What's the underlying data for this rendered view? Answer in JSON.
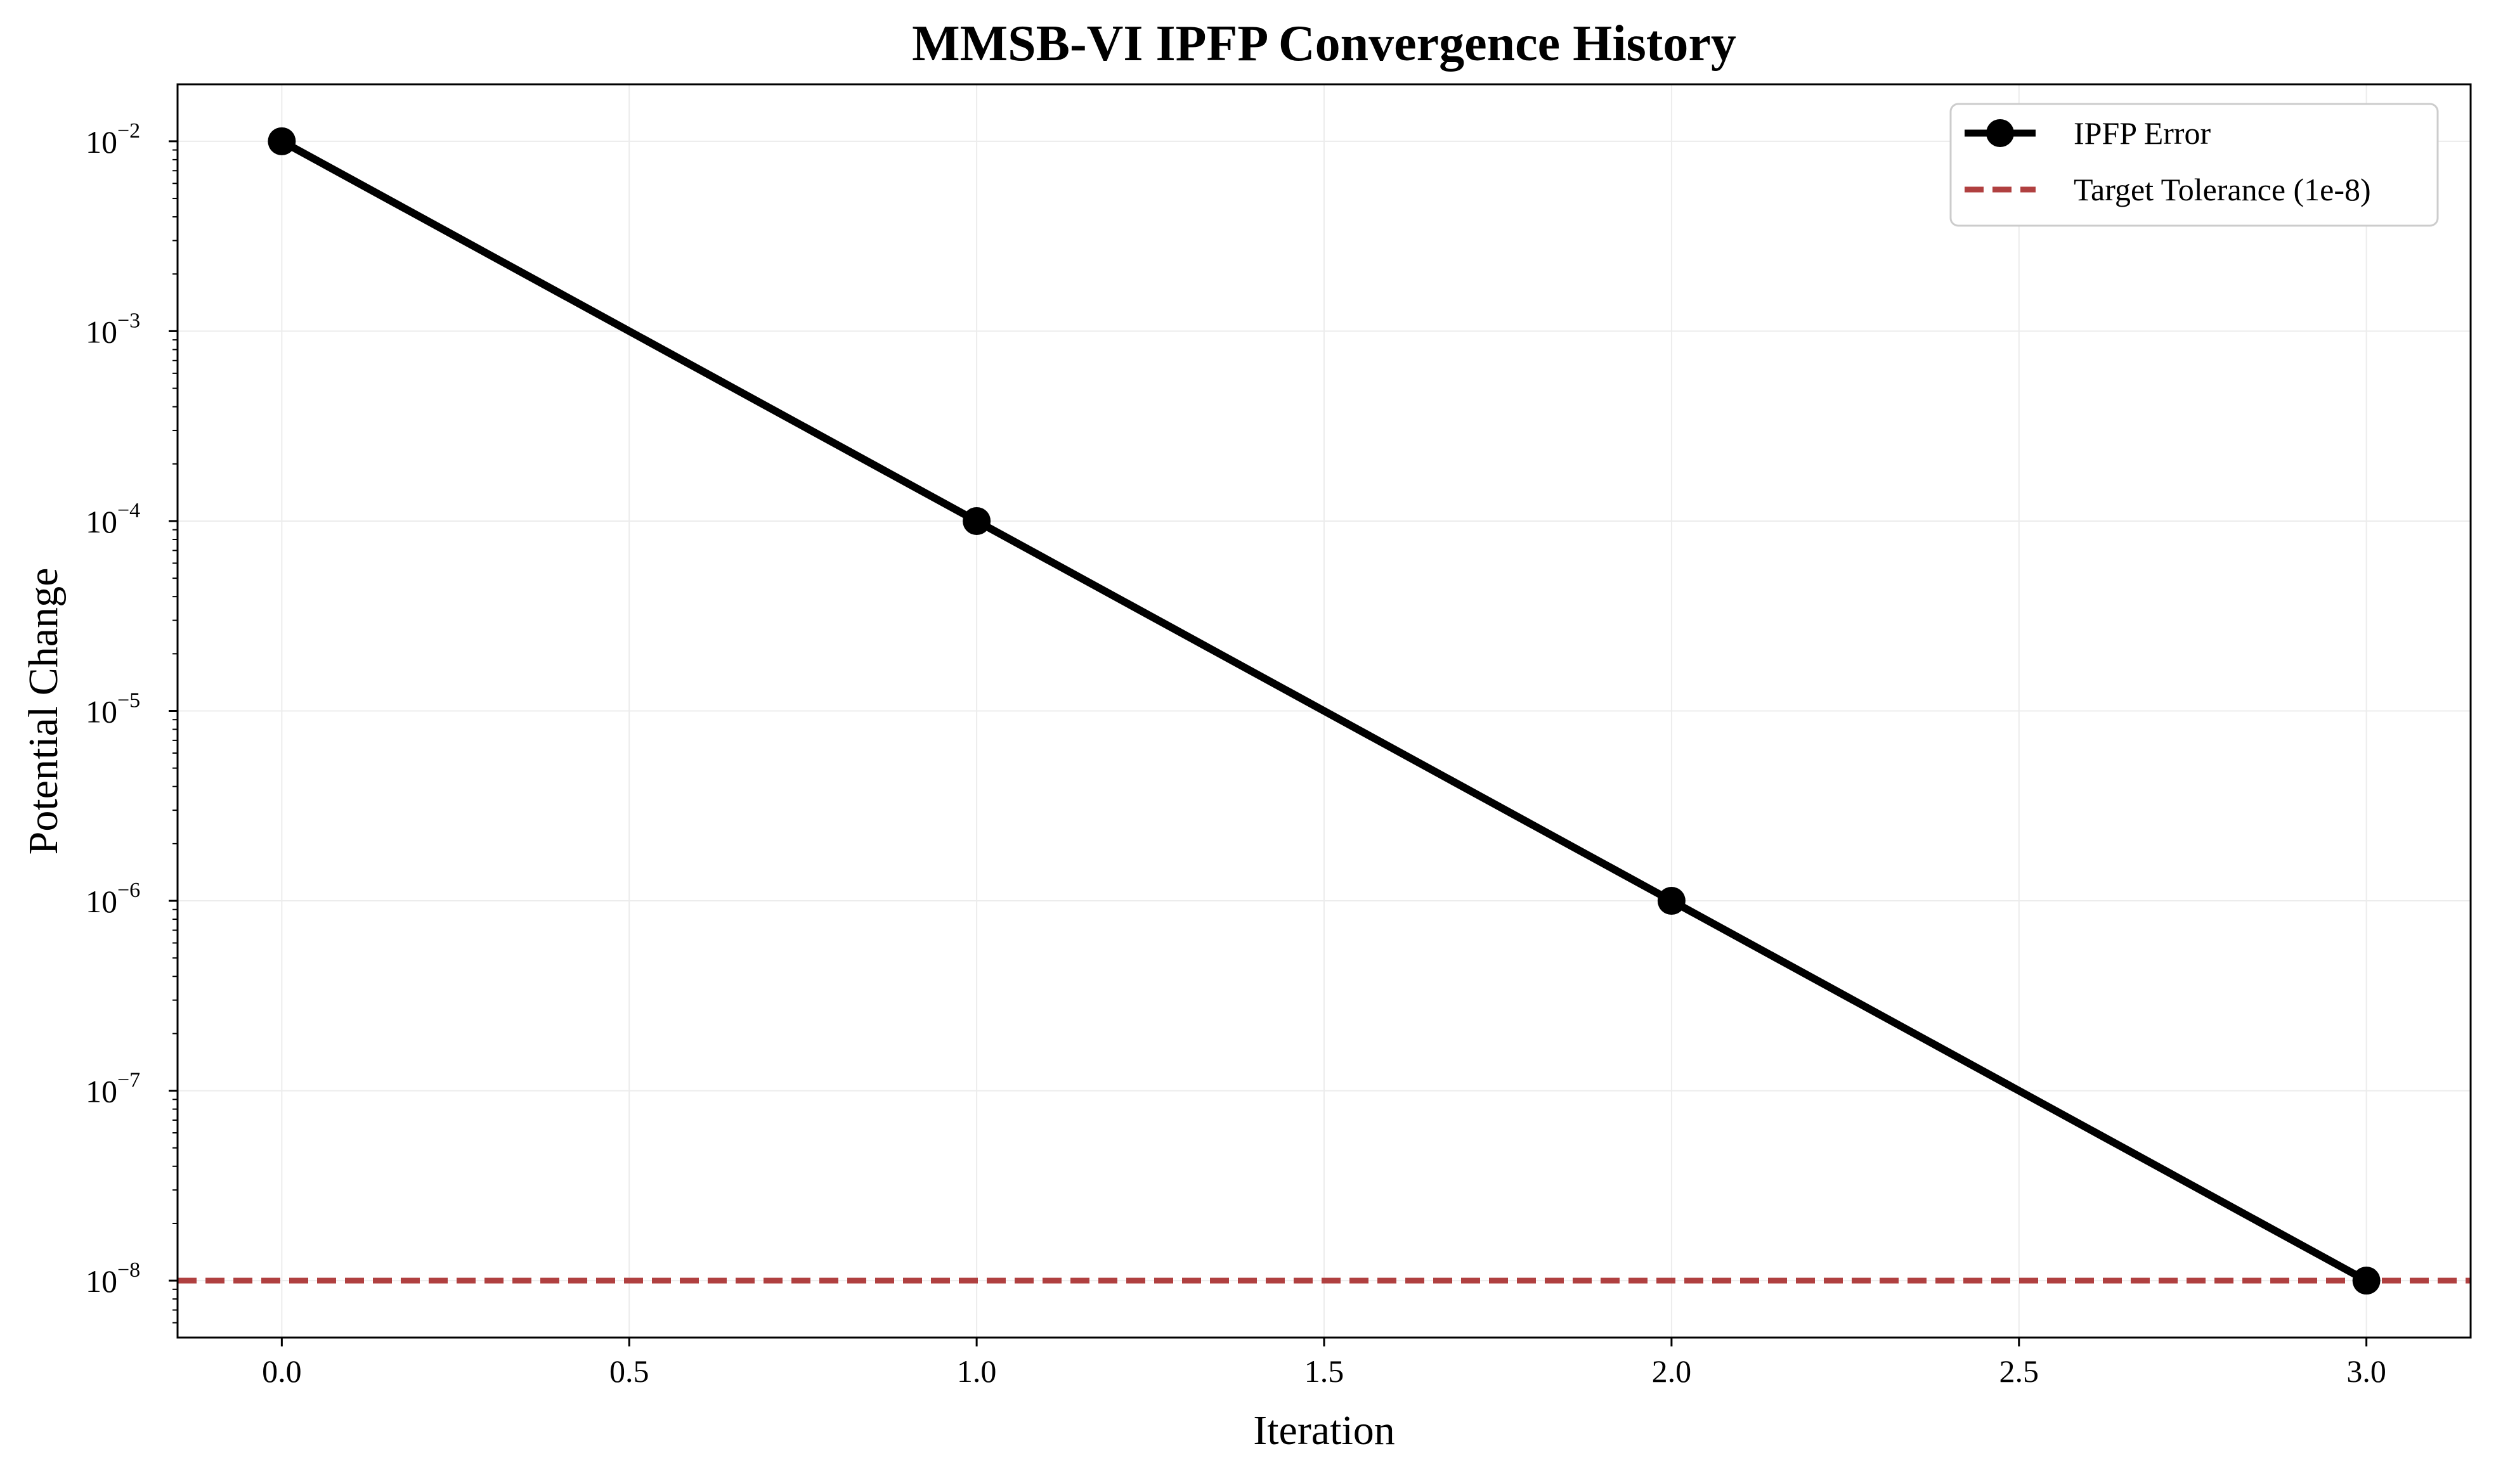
{
  "chart_data": {
    "type": "line",
    "title": "MMSB-VI IPFP Convergence History",
    "xlabel": "Iteration",
    "ylabel": "Potential Change",
    "xlim": [
      -0.15,
      3.15
    ],
    "ylim_exponent": [
      -8.3,
      -1.7
    ],
    "yscale": "log",
    "grid": true,
    "legend_position": "top-right",
    "x_ticks": [
      "0.0",
      "0.5",
      "1.0",
      "1.5",
      "2.0",
      "2.5",
      "3.0"
    ],
    "y_ticks": [
      {
        "base": "10",
        "exp": "−2",
        "value": 0.01
      },
      {
        "base": "10",
        "exp": "−3",
        "value": 0.001
      },
      {
        "base": "10",
        "exp": "−4",
        "value": 0.0001
      },
      {
        "base": "10",
        "exp": "−5",
        "value": 1e-05
      },
      {
        "base": "10",
        "exp": "−6",
        "value": 1e-06
      },
      {
        "base": "10",
        "exp": "−7",
        "value": 1e-07
      },
      {
        "base": "10",
        "exp": "−8",
        "value": 1e-08
      }
    ],
    "series": [
      {
        "name": "IPFP Error",
        "color": "#000000",
        "style": "solid",
        "marker": "circle",
        "x": [
          0,
          1,
          2,
          3
        ],
        "y": [
          0.01,
          0.0001,
          1e-06,
          1e-08
        ]
      }
    ],
    "reference_lines": [
      {
        "name": "Target Tolerance (1e-8)",
        "color": "#b04040",
        "style": "dashed",
        "y": 1e-08
      }
    ]
  }
}
